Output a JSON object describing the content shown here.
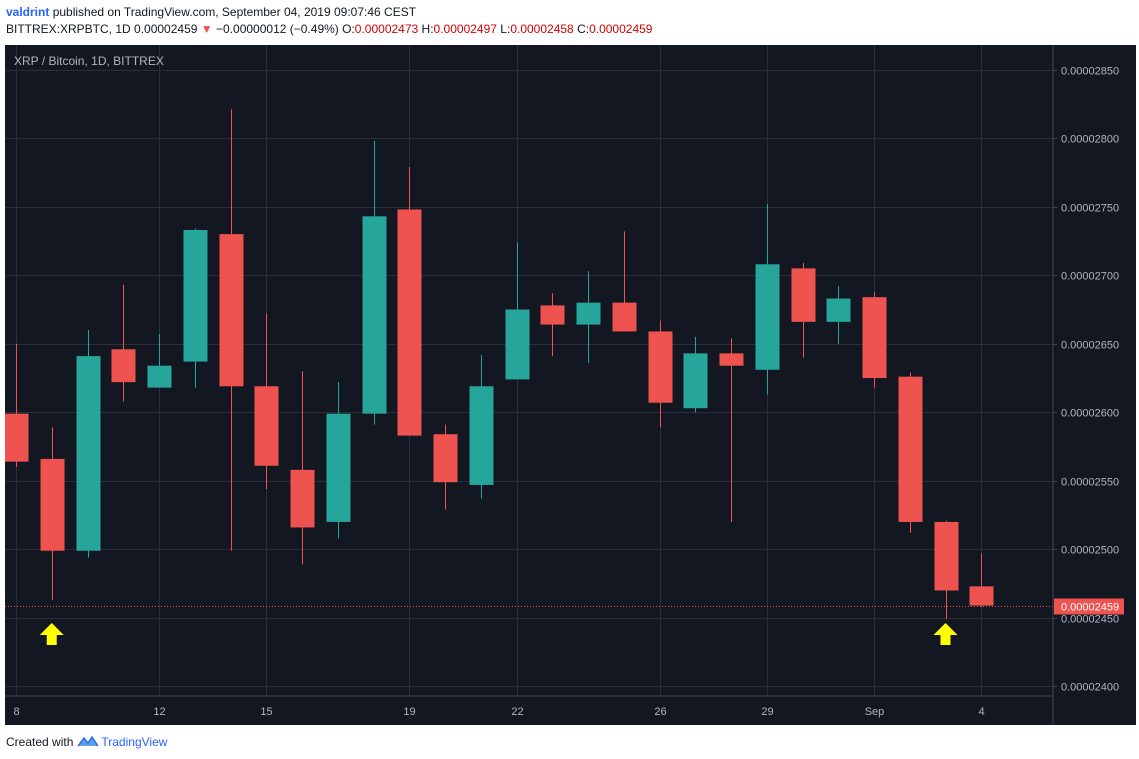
{
  "header": {
    "author": "valdrint",
    "published_text": "published on TradingView.com, September 04, 2019 09:07:46 CEST",
    "symbol_line": "BITTREX:XRPBTC, 1D",
    "last_price": "0.00002459",
    "arrow": "▼",
    "change": "−0.00000012 (−0.49%)",
    "o_label": "O:",
    "o_value": "0.00002473",
    "h_label": "H:",
    "h_value": "0.00002497",
    "l_label": "L:",
    "l_value": "0.00002458",
    "c_label": "C:",
    "c_value": "0.00002459"
  },
  "chart_data": {
    "type": "candlestick",
    "title": "XRP / Bitcoin, 1D, BITTREX",
    "ylim": [
      2.393e-05,
      2.868e-05
    ],
    "y_ticks": [
      "0.00002850",
      "0.00002800",
      "0.00002750",
      "0.00002700",
      "0.00002650",
      "0.00002600",
      "0.00002550",
      "0.00002500",
      "0.00002450",
      "0.00002400"
    ],
    "x_ticks": [
      {
        "index": 0,
        "label": "8"
      },
      {
        "index": 4,
        "label": "12"
      },
      {
        "index": 7,
        "label": "15"
      },
      {
        "index": 11,
        "label": "19"
      },
      {
        "index": 14,
        "label": "22"
      },
      {
        "index": 18,
        "label": "26"
      },
      {
        "index": 21,
        "label": "29"
      },
      {
        "index": 24,
        "label": "Sep"
      },
      {
        "index": 27,
        "label": "4"
      }
    ],
    "candles": [
      {
        "o": 2.599e-05,
        "h": 2.65e-05,
        "l": 2.56e-05,
        "c": 2.564e-05
      },
      {
        "o": 2.566e-05,
        "h": 2.589e-05,
        "l": 2.463e-05,
        "c": 2.499e-05
      },
      {
        "o": 2.499e-05,
        "h": 2.66e-05,
        "l": 2.494e-05,
        "c": 2.641e-05
      },
      {
        "o": 2.646e-05,
        "h": 2.693e-05,
        "l": 2.608e-05,
        "c": 2.622e-05
      },
      {
        "o": 2.618e-05,
        "h": 2.657e-05,
        "l": 2.618e-05,
        "c": 2.634e-05
      },
      {
        "o": 2.637e-05,
        "h": 2.734e-05,
        "l": 2.618e-05,
        "c": 2.733e-05
      },
      {
        "o": 2.73e-05,
        "h": 2.821e-05,
        "l": 2.499e-05,
        "c": 2.619e-05
      },
      {
        "o": 2.619e-05,
        "h": 2.672e-05,
        "l": 2.544e-05,
        "c": 2.561e-05
      },
      {
        "o": 2.558e-05,
        "h": 2.63e-05,
        "l": 2.489e-05,
        "c": 2.516e-05
      },
      {
        "o": 2.52e-05,
        "h": 2.622e-05,
        "l": 2.508e-05,
        "c": 2.599e-05
      },
      {
        "o": 2.599e-05,
        "h": 2.798e-05,
        "l": 2.591e-05,
        "c": 2.743e-05
      },
      {
        "o": 2.748e-05,
        "h": 2.779e-05,
        "l": 2.583e-05,
        "c": 2.583e-05
      },
      {
        "o": 2.584e-05,
        "h": 2.591e-05,
        "l": 2.529e-05,
        "c": 2.549e-05
      },
      {
        "o": 2.547e-05,
        "h": 2.642e-05,
        "l": 2.537e-05,
        "c": 2.619e-05
      },
      {
        "o": 2.624e-05,
        "h": 2.724e-05,
        "l": 2.624e-05,
        "c": 2.675e-05
      },
      {
        "o": 2.678e-05,
        "h": 2.687e-05,
        "l": 2.641e-05,
        "c": 2.664e-05
      },
      {
        "o": 2.664e-05,
        "h": 2.703e-05,
        "l": 2.636e-05,
        "c": 2.68e-05
      },
      {
        "o": 2.68e-05,
        "h": 2.732e-05,
        "l": 2.659e-05,
        "c": 2.659e-05
      },
      {
        "o": 2.659e-05,
        "h": 2.667e-05,
        "l": 2.589e-05,
        "c": 2.607e-05
      },
      {
        "o": 2.603e-05,
        "h": 2.655e-05,
        "l": 2.6e-05,
        "c": 2.643e-05
      },
      {
        "o": 2.643e-05,
        "h": 2.654e-05,
        "l": 2.52e-05,
        "c": 2.634e-05
      },
      {
        "o": 2.631e-05,
        "h": 2.752e-05,
        "l": 2.613e-05,
        "c": 2.708e-05
      },
      {
        "o": 2.705e-05,
        "h": 2.709e-05,
        "l": 2.64e-05,
        "c": 2.666e-05
      },
      {
        "o": 2.666e-05,
        "h": 2.692e-05,
        "l": 2.65e-05,
        "c": 2.683e-05
      },
      {
        "o": 2.684e-05,
        "h": 2.688e-05,
        "l": 2.618e-05,
        "c": 2.625e-05
      },
      {
        "o": 2.626e-05,
        "h": 2.629e-05,
        "l": 2.512e-05,
        "c": 2.52e-05
      },
      {
        "o": 2.52e-05,
        "h": 2.521e-05,
        "l": 2.449e-05,
        "c": 2.47e-05
      },
      {
        "o": 2.473e-05,
        "h": 2.497e-05,
        "l": 2.458e-05,
        "c": 2.459e-05
      }
    ],
    "last_price_label": "0.00002459",
    "annotations": [
      {
        "type": "arrow-up",
        "index": 1,
        "color": "#ffff00"
      },
      {
        "type": "arrow-up",
        "index": 26,
        "color": "#ffff00"
      }
    ],
    "colors": {
      "background": "#131722",
      "grid": "#2a2e39",
      "up": "#26a69a",
      "down": "#ef5350",
      "text": "#b2b5be",
      "price_line": "#ef5350",
      "arrow": "#ffff00"
    }
  },
  "footer": {
    "created_with": "Created with",
    "brand": "TradingView"
  }
}
